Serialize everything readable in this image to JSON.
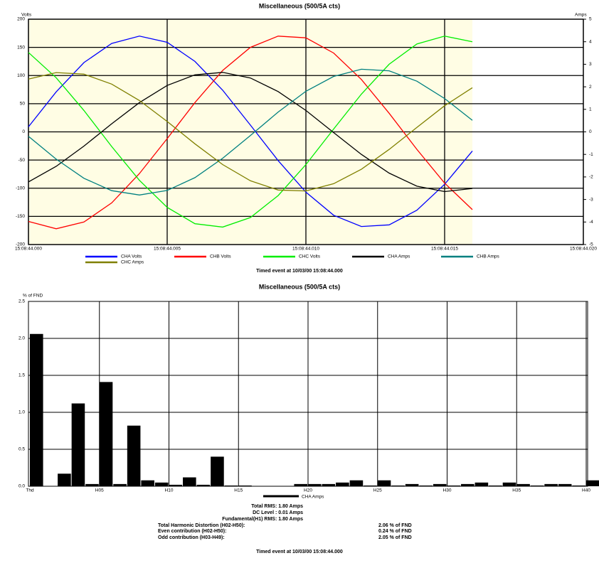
{
  "chart_data": [
    {
      "type": "line",
      "title": "Miscellaneous (500/5A cts)",
      "y_label": "Volts",
      "y2_label": "Amps",
      "x": [
        "15:08:44.000",
        "15:08:44.001",
        "15:08:44.002",
        "15:08:44.003",
        "15:08:44.004",
        "15:08:44.005",
        "15:08:44.006",
        "15:08:44.007",
        "15:08:44.008",
        "15:08:44.009",
        "15:08:44.010",
        "15:08:44.011",
        "15:08:44.012",
        "15:08:44.013",
        "15:08:44.014",
        "15:08:44.015",
        "15:08:44.016"
      ],
      "xlim": [
        "15:08:44.000",
        "15:08:44.020"
      ],
      "xticks": [
        "15:08:44.000",
        "15:08:44.005",
        "15:08:44.010",
        "15:08:44.015",
        "15:08:44.020"
      ],
      "ylim": [
        -200,
        200
      ],
      "yticks": [
        200,
        150,
        100,
        50,
        0,
        -50,
        -100,
        -150,
        -200
      ],
      "y2lim": [
        -5,
        5
      ],
      "y2ticks": [
        5,
        4,
        3,
        2,
        1,
        0,
        -1,
        -2,
        -3,
        -4,
        -5
      ],
      "grid": true,
      "series": [
        {
          "name": "CHA Volts",
          "color": "#0000ff",
          "values": [
            9,
            71,
            123,
            157,
            170,
            159,
            125,
            74,
            12,
            -51,
            -107,
            -148,
            -168,
            -165,
            -139,
            -93,
            -34
          ]
        },
        {
          "name": "CHB Volts",
          "color": "#ff0000",
          "values": [
            -159,
            -172,
            -160,
            -126,
            -74,
            -12,
            52,
            109,
            150,
            170,
            167,
            140,
            93,
            33,
            -31,
            -91,
            -138
          ]
        },
        {
          "name": "CHC Volts",
          "color": "#00ee00",
          "values": [
            141,
            96,
            38,
            -26,
            -86,
            -134,
            -163,
            -169,
            -152,
            -113,
            -58,
            5,
            67,
            120,
            156,
            170,
            160
          ]
        },
        {
          "name": "CHA Amps",
          "color": "#000000",
          "axis": "y2",
          "values": [
            -2.22,
            -1.53,
            -0.63,
            0.36,
            1.3,
            2.06,
            2.53,
            2.64,
            2.39,
            1.79,
            0.95,
            -0.03,
            -1.0,
            -1.83,
            -2.41,
            -2.65,
            -2.51
          ]
        },
        {
          "name": "CHB Amps",
          "color": "#008080",
          "axis": "y2",
          "values": [
            -0.2,
            -1.21,
            -2.06,
            -2.61,
            -2.8,
            -2.6,
            -2.03,
            -1.17,
            -0.16,
            0.88,
            1.8,
            2.46,
            2.78,
            2.71,
            2.25,
            1.48,
            0.51
          ]
        },
        {
          "name": "CHC Amps",
          "color": "#808000",
          "axis": "y2",
          "values": [
            2.34,
            2.63,
            2.56,
            2.12,
            1.39,
            0.46,
            -0.53,
            -1.45,
            -2.17,
            -2.58,
            -2.62,
            -2.3,
            -1.66,
            -0.78,
            0.2,
            1.16,
            1.96
          ]
        }
      ],
      "footnote": "Timed event at 10/03/00 15:08:44.000"
    },
    {
      "type": "bar",
      "title": "Miscellaneous (500/5A cts)",
      "y_label": "% of FND",
      "categories": [
        "Thd",
        null,
        null,
        null,
        null,
        "H05",
        null,
        null,
        null,
        null,
        "H10",
        null,
        null,
        null,
        null,
        "H15",
        null,
        null,
        null,
        null,
        "H20",
        null,
        null,
        null,
        null,
        "H25",
        null,
        null,
        null,
        null,
        "H30",
        null,
        null,
        null,
        null,
        "H35",
        null,
        null,
        null,
        null,
        "H40"
      ],
      "series": [
        {
          "name": "CHA Amps",
          "color": "#000000",
          "values": [
            2.06,
            0,
            0.17,
            1.12,
            0.03,
            1.41,
            0.03,
            0.82,
            0.08,
            0.05,
            0.02,
            0.12,
            0.02,
            0.4,
            0.01,
            0.01,
            0,
            0,
            0,
            0.03,
            0.03,
            0.03,
            0.05,
            0.08,
            0.01,
            0.08,
            0.01,
            0.03,
            0.01,
            0.03,
            0.01,
            0.03,
            0.05,
            0.01,
            0.05,
            0.03,
            0.01,
            0.03,
            0.03,
            0.01,
            0.08
          ]
        }
      ],
      "ylim": [
        0,
        2.5
      ],
      "yticks": [
        {
          "value": 0,
          "label": "0.0"
        },
        {
          "value": 0.5,
          "label": "0.5"
        },
        {
          "value": 1,
          "label": "1.0"
        },
        {
          "value": 1.5,
          "label": "1.5"
        },
        {
          "value": 2,
          "label": "2.0"
        },
        {
          "value": 2.5,
          "label": "2.5"
        }
      ],
      "grid": true,
      "footnote": "Timed event at 10/03/00 15:08:44.000"
    }
  ],
  "summary": {
    "lines": [
      "Total RMS: 1.80 Amps",
      "DC Level : 0.01 Amps",
      "Fundamental(H1) RMS: 1.80 Amps"
    ],
    "rows": [
      [
        "Total Harmonic Distortion (H02-H50):",
        "2.06 % of FND"
      ],
      [
        "Even contribution (H02-H50):",
        "0.24 % of FND"
      ],
      [
        "Odd contribution (H03-H49):",
        "2.05 % of FND"
      ]
    ]
  }
}
